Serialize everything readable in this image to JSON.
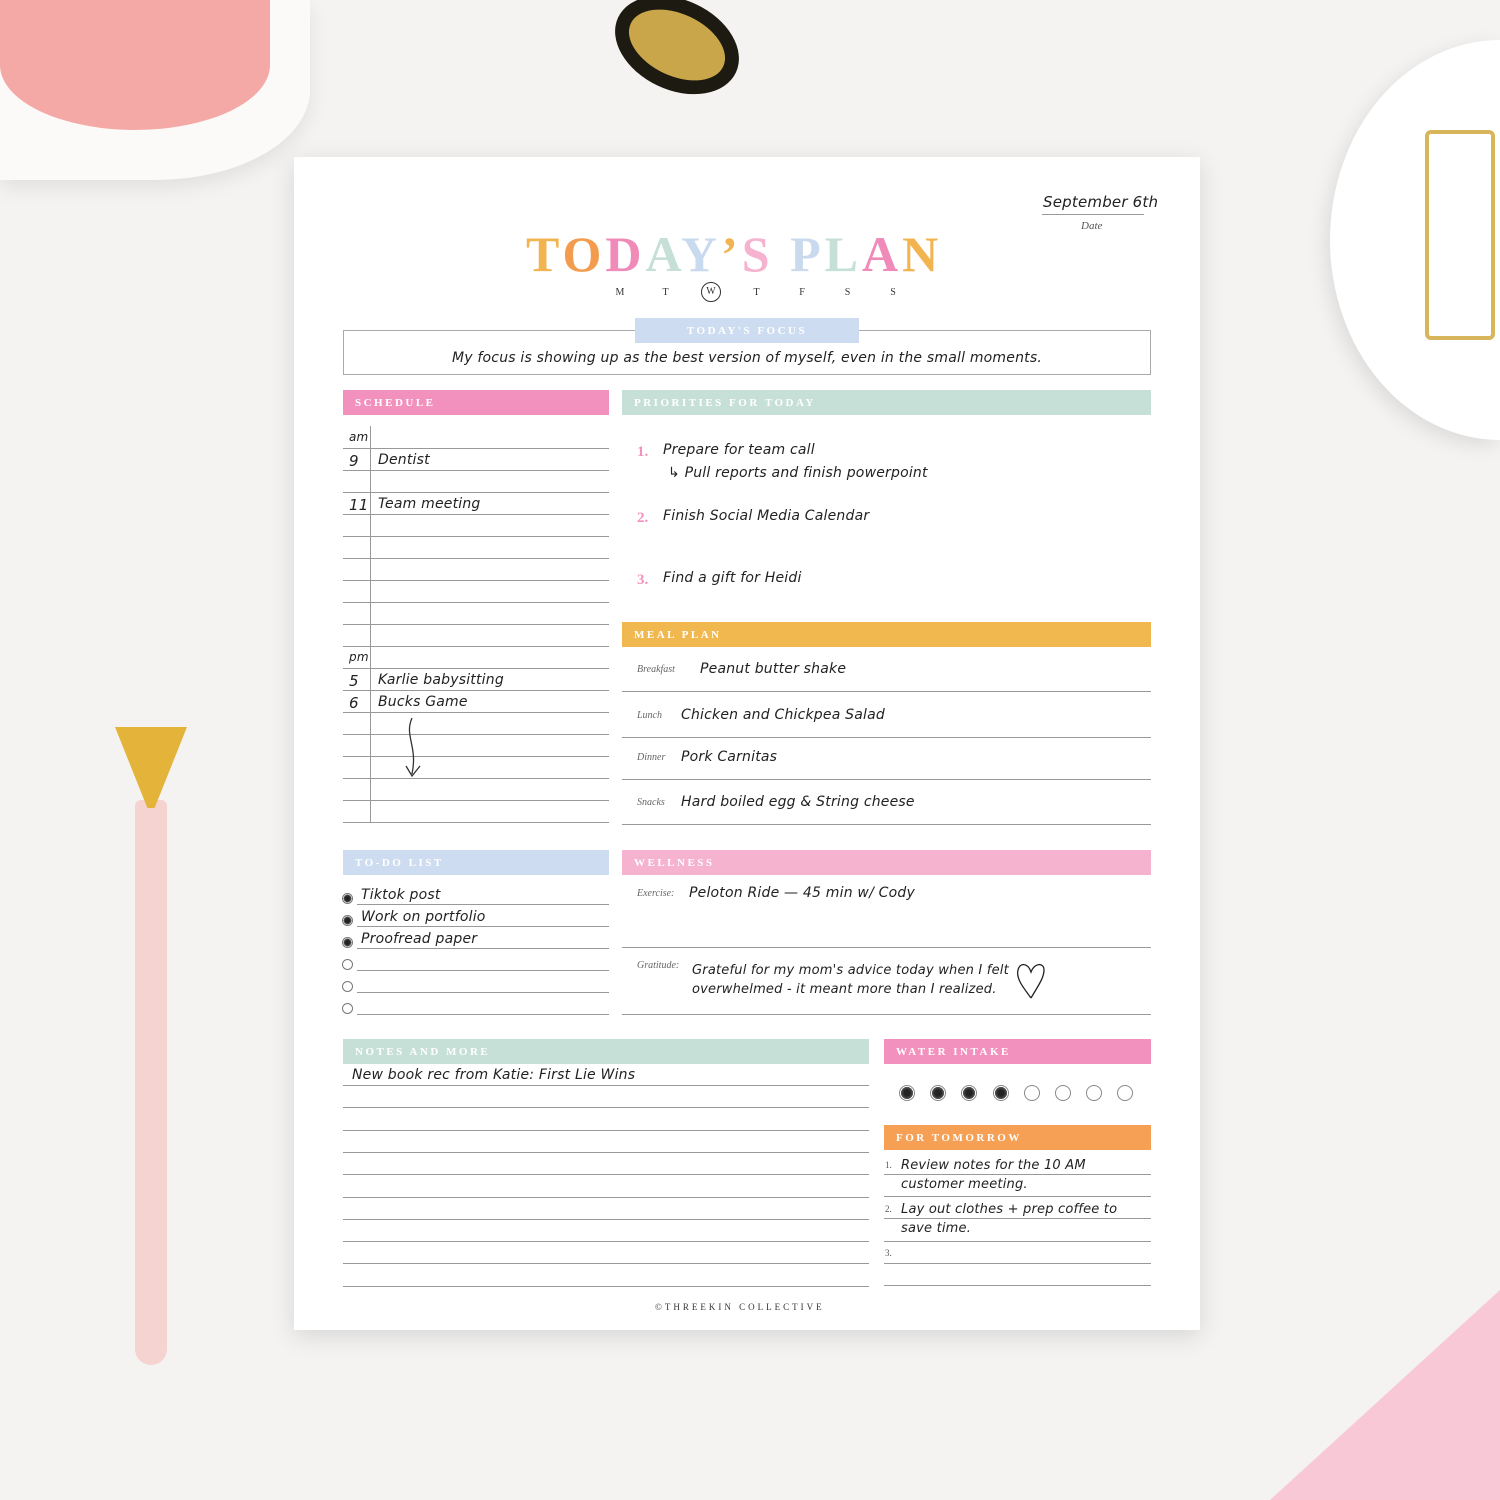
{
  "header": {
    "date": "September 6th",
    "date_label": "Date",
    "title_letters": [
      {
        "ch": "T",
        "color": "#f2b450"
      },
      {
        "ch": "O",
        "color": "#f39c4e"
      },
      {
        "ch": "D",
        "color": "#f08bb9"
      },
      {
        "ch": "A",
        "color": "#c6e0d8"
      },
      {
        "ch": "Y",
        "color": "#c9d9ee"
      },
      {
        "ch": "’",
        "color": "#f2b450"
      },
      {
        "ch": "S",
        "color": "#f5b3cf"
      },
      {
        "ch": " ",
        "color": "#fff"
      },
      {
        "ch": "P",
        "color": "#c9d9ee"
      },
      {
        "ch": "L",
        "color": "#c6e0d8"
      },
      {
        "ch": "A",
        "color": "#f08bb9"
      },
      {
        "ch": "N",
        "color": "#f2b450"
      }
    ],
    "days": [
      "M",
      "T",
      "W",
      "T",
      "F",
      "S",
      "S"
    ],
    "selected_day_index": 2
  },
  "focus": {
    "label": "TODAY'S FOCUS",
    "text": "My focus is showing up as the best version of myself, even in the small moments."
  },
  "schedule": {
    "label": "SCHEDULE",
    "rows": [
      {
        "time": "am",
        "text": ""
      },
      {
        "time": "9",
        "text": "Dentist"
      },
      {
        "time": "",
        "text": ""
      },
      {
        "time": "11",
        "text": "Team meeting"
      },
      {
        "time": "",
        "text": ""
      },
      {
        "time": "",
        "text": ""
      },
      {
        "time": "",
        "text": ""
      },
      {
        "time": "",
        "text": ""
      },
      {
        "time": "",
        "text": ""
      },
      {
        "time": "",
        "text": ""
      },
      {
        "time": "pm",
        "text": ""
      },
      {
        "time": "5",
        "text": "Karlie babysitting"
      },
      {
        "time": "6",
        "text": "Bucks Game"
      },
      {
        "time": "",
        "text": ""
      },
      {
        "time": "",
        "text": ""
      },
      {
        "time": "",
        "text": ""
      },
      {
        "time": "",
        "text": ""
      },
      {
        "time": "",
        "text": ""
      }
    ]
  },
  "priorities": {
    "label": "PRIORITIES FOR TODAY",
    "items": [
      {
        "num": "1.",
        "text": "Prepare for team call",
        "sub": "↳ Pull reports and finish powerpoint"
      },
      {
        "num": "2.",
        "text": "Finish Social Media Calendar",
        "sub": ""
      },
      {
        "num": "3.",
        "text": "Find a gift for Heidi",
        "sub": ""
      }
    ]
  },
  "meal_plan": {
    "label": "MEAL PLAN",
    "items": [
      {
        "label": "Breakfast",
        "text": "Peanut butter shake"
      },
      {
        "label": "Lunch",
        "text": "Chicken and Chickpea Salad"
      },
      {
        "label": "Dinner",
        "text": "Pork Carnitas"
      },
      {
        "label": "Snacks",
        "text": "Hard boiled egg & String cheese"
      }
    ]
  },
  "todo": {
    "label": "TO-DO LIST",
    "items": [
      {
        "text": "Tiktok post",
        "done": true
      },
      {
        "text": "Work on portfolio",
        "done": true
      },
      {
        "text": "Proofread paper",
        "done": true
      },
      {
        "text": "",
        "done": false
      },
      {
        "text": "",
        "done": false
      },
      {
        "text": "",
        "done": false
      }
    ]
  },
  "wellness": {
    "label": "WELLNESS",
    "exercise_label": "Exercise:",
    "exercise": "Peloton Ride — 45 min w/ Cody",
    "gratitude_label": "Gratitude:",
    "gratitude_1": "Grateful for my mom's advice today when I felt",
    "gratitude_2": "overwhelmed - it meant more than I realized."
  },
  "notes": {
    "label": "NOTES AND MORE",
    "lines": [
      "New book rec from Katie: First Lie Wins"
    ]
  },
  "water": {
    "label": "WATER INTAKE",
    "filled": 4,
    "total": 8
  },
  "tomorrow": {
    "label": "FOR TOMORROW",
    "items": [
      {
        "num": "1.",
        "line1": "Review notes for the 10 AM",
        "line2": "customer meeting."
      },
      {
        "num": "2.",
        "line1": "Lay out clothes + prep coffee to",
        "line2": "save time."
      },
      {
        "num": "3.",
        "line1": "",
        "line2": ""
      }
    ]
  },
  "footer": "©THREEKIN COLLECTIVE",
  "colors": {
    "pink": "#f291bd",
    "mint": "#c6e0d8",
    "blue": "#cddcf0",
    "yellow": "#f2b850",
    "orange": "#f5a055",
    "lightpink": "#f5b3cf"
  }
}
